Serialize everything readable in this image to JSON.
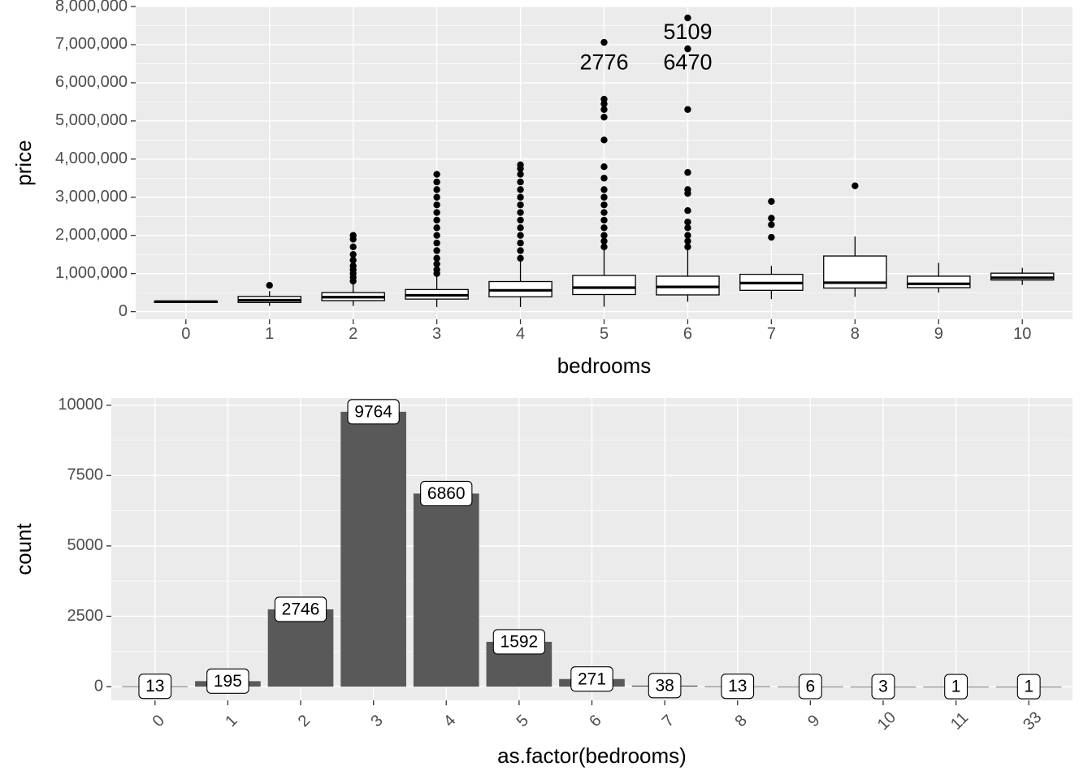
{
  "chart_data": [
    {
      "type": "boxplot",
      "xlabel": "bedrooms",
      "ylabel": "price",
      "categories": [
        "0",
        "1",
        "2",
        "3",
        "4",
        "5",
        "6",
        "7",
        "8",
        "9",
        "10"
      ],
      "ylim": [
        -200000,
        8000000
      ],
      "y_ticks": [
        0,
        1000000,
        2000000,
        3000000,
        4000000,
        5000000,
        6000000,
        7000000,
        8000000
      ],
      "y_tick_labels": [
        "0",
        "1,000,000",
        "2,000,000",
        "3,000,000",
        "4,000,000",
        "5,000,000",
        "6,000,000",
        "7,000,000",
        "8,000,000"
      ],
      "grid": true,
      "boxes": [
        {
          "category": "0",
          "min": 240000,
          "q1": 240000,
          "median": 265000,
          "q3": 275000,
          "max": 290000,
          "outliers": []
        },
        {
          "category": "1",
          "min": 150000,
          "q1": 240000,
          "median": 300000,
          "q3": 400000,
          "max": 540000,
          "outliers": [
            690000
          ]
        },
        {
          "category": "2",
          "min": 150000,
          "q1": 290000,
          "median": 380000,
          "q3": 500000,
          "max": 760000,
          "outliers": [
            800000,
            900000,
            1000000,
            1100000,
            1200000,
            1350000,
            1500000,
            1700000,
            1900000,
            2000000
          ]
        },
        {
          "category": "3",
          "min": 120000,
          "q1": 330000,
          "median": 430000,
          "q3": 580000,
          "max": 960000,
          "outliers": [
            1000000,
            1100000,
            1250000,
            1400000,
            1600000,
            1800000,
            2000000,
            2200000,
            2400000,
            2600000,
            2800000,
            3000000,
            3200000,
            3400000,
            3600000
          ]
        },
        {
          "category": "4",
          "min": 120000,
          "q1": 390000,
          "median": 560000,
          "q3": 790000,
          "max": 1350000,
          "outliers": [
            1400000,
            1600000,
            1800000,
            2000000,
            2200000,
            2400000,
            2600000,
            2800000,
            3000000,
            3200000,
            3400000,
            3600000,
            3750000,
            3850000
          ]
        },
        {
          "category": "5",
          "min": 130000,
          "q1": 450000,
          "median": 630000,
          "q3": 950000,
          "max": 1650000,
          "outliers": [
            1700000,
            1850000,
            2000000,
            2200000,
            2400000,
            2600000,
            2800000,
            3000000,
            3200000,
            3500000,
            3800000,
            4500000,
            5100000,
            5300000,
            5450000,
            5570000,
            7060000
          ]
        },
        {
          "category": "6",
          "min": 260000,
          "q1": 440000,
          "median": 650000,
          "q3": 930000,
          "max": 1650000,
          "outliers": [
            1700000,
            1850000,
            2000000,
            2200000,
            2350000,
            2650000,
            3100000,
            3200000,
            3650000,
            5300000,
            6890000,
            7700000
          ]
        },
        {
          "category": "7",
          "min": 330000,
          "q1": 560000,
          "median": 750000,
          "q3": 980000,
          "max": 1200000,
          "outliers": [
            1950000,
            2280000,
            2450000,
            2890000
          ]
        },
        {
          "category": "8",
          "min": 390000,
          "q1": 620000,
          "median": 760000,
          "q3": 1460000,
          "max": 1970000,
          "outliers": [
            3300000
          ]
        },
        {
          "category": "9",
          "min": 500000,
          "q1": 630000,
          "median": 730000,
          "q3": 930000,
          "max": 1280000,
          "outliers": []
        },
        {
          "category": "10",
          "min": 700000,
          "q1": 830000,
          "median": 890000,
          "q3": 1010000,
          "max": 1150000,
          "outliers": []
        }
      ],
      "annotations": [
        {
          "text": "2776",
          "category": "5",
          "y": 6500000
        },
        {
          "text": "5109",
          "category": "6",
          "y": 7300000
        },
        {
          "text": "6470",
          "category": "6",
          "y": 6500000
        }
      ]
    },
    {
      "type": "bar",
      "xlabel": "as.factor(bedrooms)",
      "ylabel": "count",
      "categories": [
        "0",
        "1",
        "2",
        "3",
        "4",
        "5",
        "6",
        "7",
        "8",
        "9",
        "10",
        "11",
        "33"
      ],
      "values": [
        13,
        195,
        2746,
        9764,
        6860,
        1592,
        271,
        38,
        13,
        6,
        3,
        1,
        1
      ],
      "data_labels": [
        "13",
        "195",
        "2746",
        "9764",
        "6860",
        "1592",
        "271",
        "38",
        "13",
        "6",
        "3",
        "1",
        "1"
      ],
      "ylim": [
        -488,
        10250
      ],
      "y_ticks": [
        0,
        2500,
        5000,
        7500,
        10000
      ],
      "y_tick_labels": [
        "0",
        "2500",
        "5000",
        "7500",
        "10000"
      ],
      "grid": true,
      "colors": {
        "bar": "#595959"
      }
    }
  ]
}
